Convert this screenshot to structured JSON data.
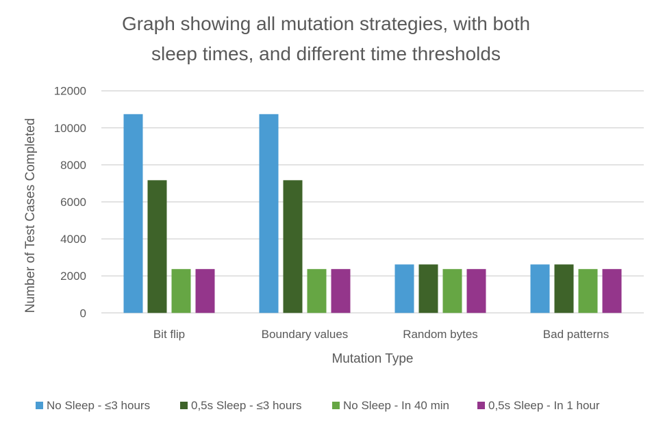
{
  "chart_data": {
    "type": "bar",
    "title_lines": [
      "Graph showing all mutation strategies, with both",
      "sleep times, and different time thresholds"
    ],
    "xlabel": "Mutation Type",
    "ylabel": "Number of Test Cases Completed",
    "ylim": [
      0,
      12000
    ],
    "yticks": [
      "0",
      "2000",
      "4000",
      "6000",
      "8000",
      "10000",
      "12000"
    ],
    "grid": true,
    "legend_position": "bottom",
    "categories": [
      "Bit flip",
      "Boundary values",
      "Random bytes",
      "Bad patterns"
    ],
    "series": [
      {
        "name": "No Sleep - ≤3 hours",
        "color": "#4A9CD3",
        "values": [
          10740,
          10740,
          2620,
          2620
        ]
      },
      {
        "name": "0,5s Sleep - ≤3 hours",
        "color": "#3E6329",
        "values": [
          7170,
          7170,
          2620,
          2620
        ]
      },
      {
        "name": "No Sleep - In 40 min",
        "color": "#66A644",
        "values": [
          2370,
          2370,
          2370,
          2370
        ]
      },
      {
        "name": "0,5s Sleep - In 1 hour",
        "color": "#94368B",
        "values": [
          2370,
          2370,
          2370,
          2370
        ]
      }
    ]
  }
}
